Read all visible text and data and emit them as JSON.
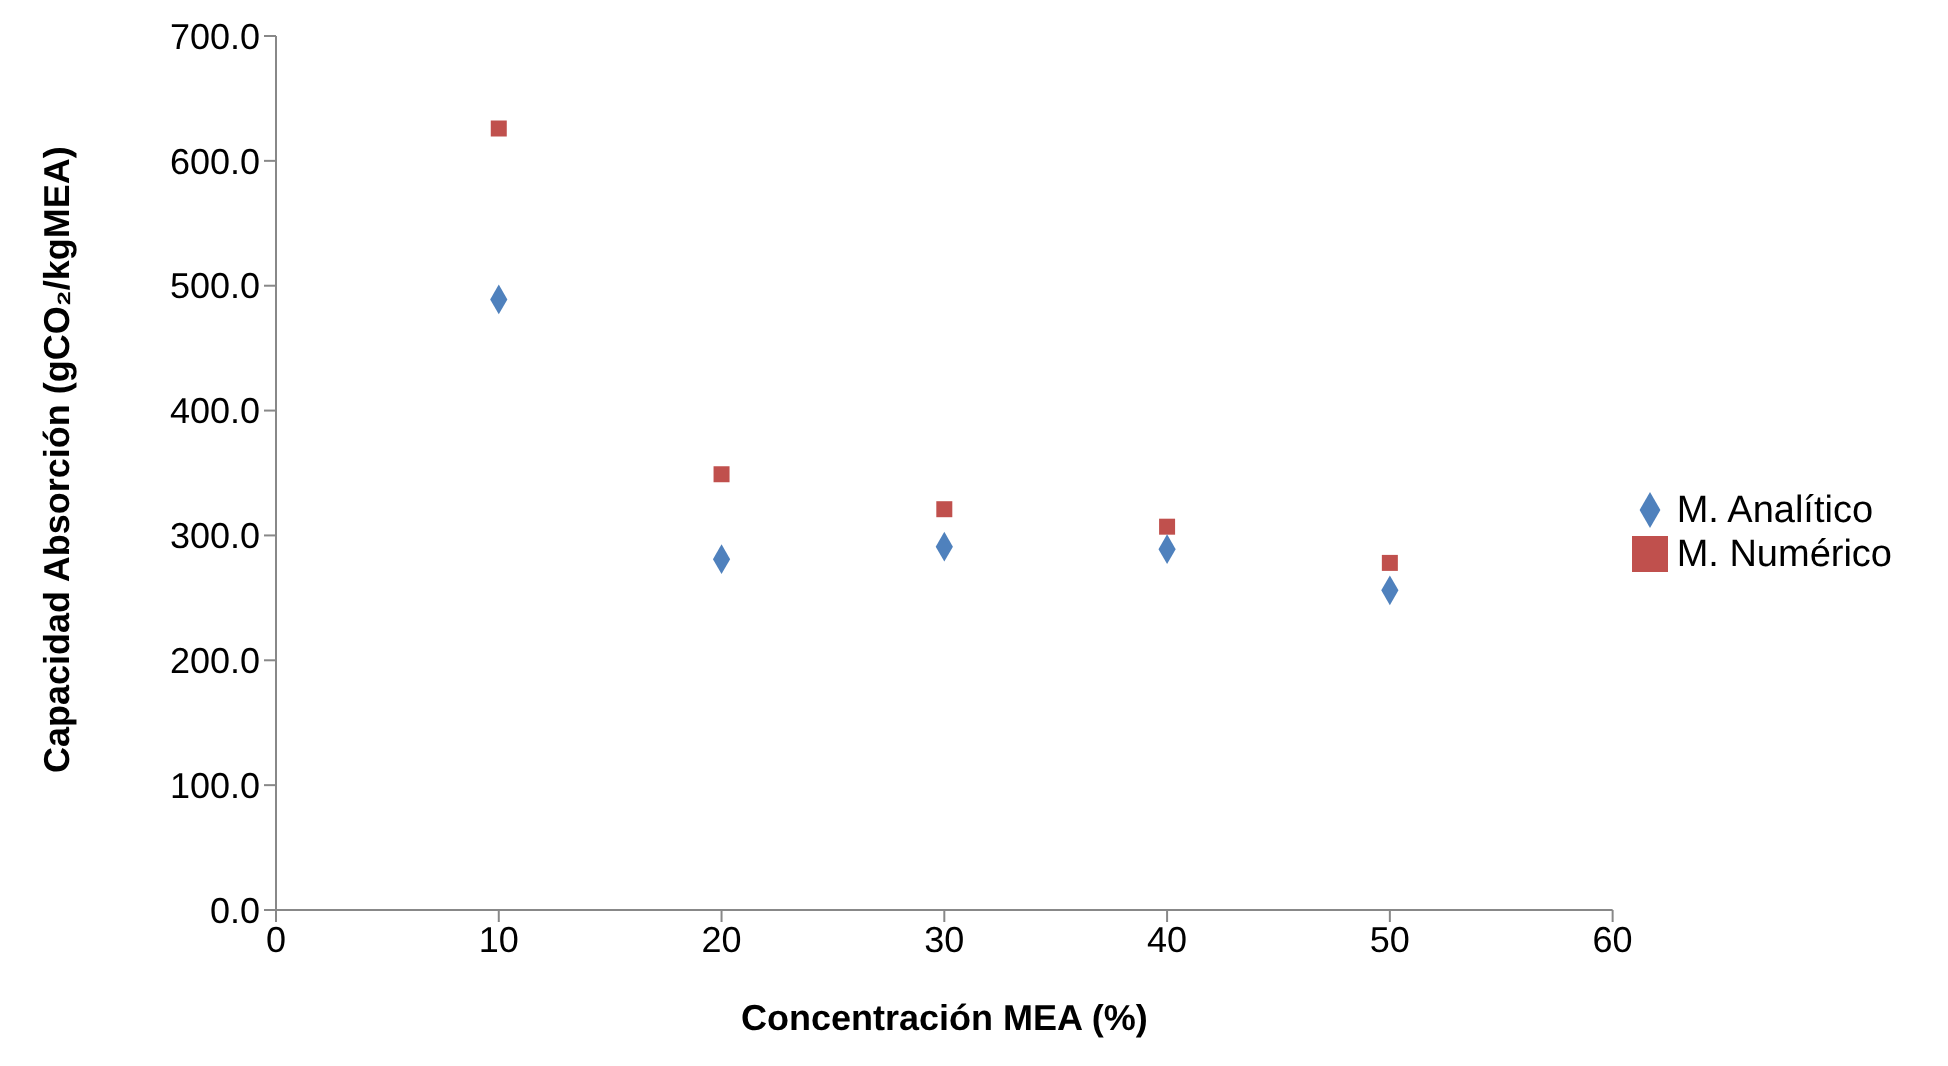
{
  "chart_data": {
    "type": "scatter",
    "xlabel": "Concentración MEA (%)",
    "ylabel": "Capacidad Absorción (gCO₂/kgMEA)",
    "x": [
      10,
      20,
      30,
      40,
      50
    ],
    "series": [
      {
        "name": "M. Numérico",
        "color": "#c0504d",
        "marker": "square",
        "values": [
          626,
          349,
          321,
          307,
          278
        ]
      },
      {
        "name": "M. Analítico",
        "color": "#4f81bd",
        "marker": "diamond",
        "values": [
          489,
          281,
          291,
          289,
          256
        ]
      }
    ],
    "xlim": [
      0,
      60
    ],
    "xticks": [
      0,
      10,
      20,
      30,
      40,
      50,
      60
    ],
    "ylim": [
      0,
      700
    ],
    "yticks": [
      {
        "value": 0,
        "label": "0.0"
      },
      {
        "value": 100,
        "label": "100.0"
      },
      {
        "value": 200,
        "label": "200.0"
      },
      {
        "value": 300,
        "label": "300.0"
      },
      {
        "value": 400,
        "label": "400.0"
      },
      {
        "value": 500,
        "label": "500.0"
      },
      {
        "value": 600,
        "label": "600.0"
      },
      {
        "value": 700,
        "label": "700.0"
      }
    ],
    "grid": false,
    "legend": "right"
  }
}
